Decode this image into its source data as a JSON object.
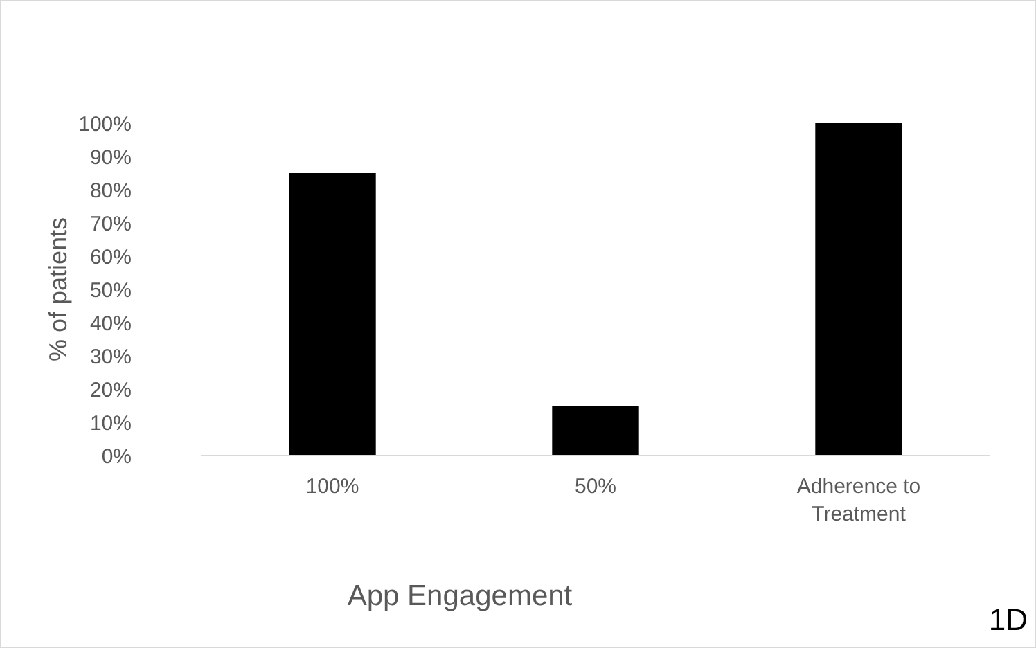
{
  "chart_data": {
    "type": "bar",
    "xlabel": "App Engagement",
    "ylabel": "% of patients",
    "categories": [
      "100%",
      "50%",
      "Adherence to Treatment"
    ],
    "values": [
      85,
      15,
      100
    ],
    "color": "#000000",
    "ylim": [
      0,
      100
    ],
    "yticks": [
      {
        "value": 0,
        "label": "0%"
      },
      {
        "value": 10,
        "label": "10%"
      },
      {
        "value": 20,
        "label": "20%"
      },
      {
        "value": 30,
        "label": "30%"
      },
      {
        "value": 40,
        "label": "40%"
      },
      {
        "value": 50,
        "label": "50%"
      },
      {
        "value": 60,
        "label": "60%"
      },
      {
        "value": 70,
        "label": "70%"
      },
      {
        "value": 80,
        "label": "80%"
      },
      {
        "value": 90,
        "label": "90%"
      },
      {
        "value": 100,
        "label": "100%"
      }
    ],
    "grid": false,
    "annotations": [
      "1D"
    ]
  }
}
